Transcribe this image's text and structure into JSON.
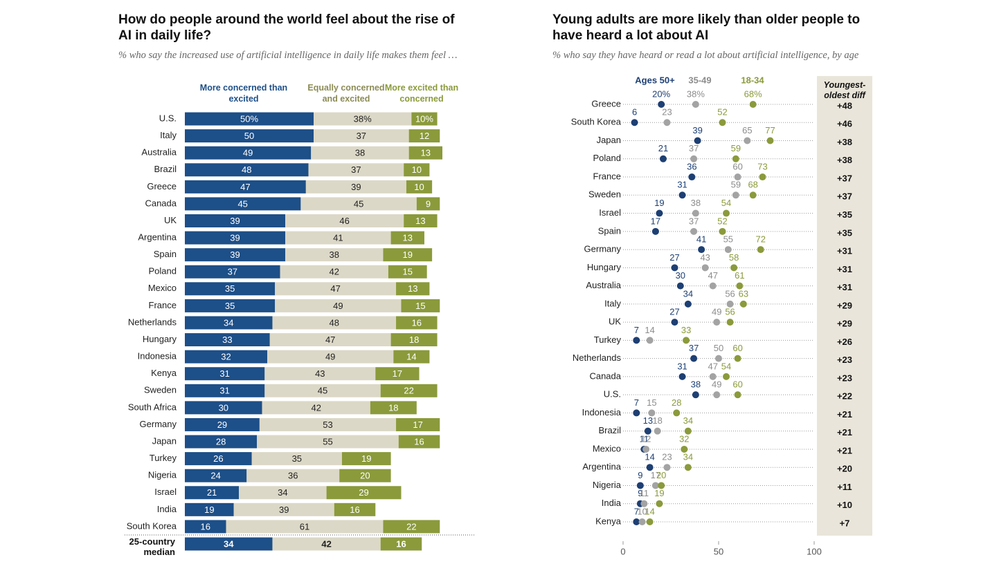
{
  "chart_data": [
    {
      "type": "bar",
      "orientation": "horizontal",
      "stacked": true,
      "title": "How do people around the world feel about the rise of AI in daily life?",
      "subtitle": "% who say the increased use of artificial intelligence in daily life makes them feel …",
      "categories": [
        "U.S.",
        "Italy",
        "Australia",
        "Brazil",
        "Greece",
        "Canada",
        "UK",
        "Argentina",
        "Spain",
        "Poland",
        "Mexico",
        "France",
        "Netherlands",
        "Hungary",
        "Indonesia",
        "Kenya",
        "Sweden",
        "South Africa",
        "Germany",
        "Japan",
        "Turkey",
        "Nigeria",
        "Israel",
        "India",
        "South Korea"
      ],
      "series": [
        {
          "name": "More concerned than excited",
          "color": "#1d4f88",
          "values": [
            50,
            50,
            49,
            48,
            47,
            45,
            39,
            39,
            39,
            37,
            35,
            35,
            34,
            33,
            32,
            31,
            31,
            30,
            29,
            28,
            26,
            24,
            21,
            19,
            16
          ],
          "value_labels": [
            "50%",
            "50",
            "49",
            "48",
            "47",
            "45",
            "39",
            "39",
            "39",
            "37",
            "35",
            "35",
            "34",
            "33",
            "32",
            "31",
            "31",
            "30",
            "29",
            "28",
            "26",
            "24",
            "21",
            "19",
            "16"
          ]
        },
        {
          "name": "Equally concerned and excited",
          "color": "#dcd8c7",
          "values": [
            38,
            37,
            38,
            37,
            39,
            45,
            46,
            41,
            38,
            42,
            47,
            49,
            48,
            47,
            49,
            43,
            45,
            42,
            53,
            55,
            35,
            36,
            34,
            39,
            61
          ],
          "value_labels": [
            "38%",
            "37",
            "38",
            "37",
            "39",
            "45",
            "46",
            "41",
            "38",
            "42",
            "47",
            "49",
            "48",
            "47",
            "49",
            "43",
            "45",
            "42",
            "53",
            "55",
            "35",
            "36",
            "34",
            "39",
            "61"
          ]
        },
        {
          "name": "More excited than concerned",
          "color": "#8b9a3b",
          "values": [
            10,
            12,
            13,
            10,
            10,
            9,
            13,
            13,
            19,
            15,
            13,
            15,
            16,
            18,
            14,
            17,
            22,
            18,
            17,
            16,
            19,
            20,
            29,
            16,
            22
          ],
          "value_labels": [
            "10%",
            "12",
            "13",
            "10",
            "10",
            "9",
            "13",
            "13",
            "19",
            "15",
            "13",
            "15",
            "16",
            "18",
            "14",
            "17",
            "22",
            "18",
            "17",
            "16",
            "19",
            "20",
            "29",
            "16",
            "22"
          ]
        }
      ],
      "summary": {
        "label": "25-country median",
        "values": [
          34,
          42,
          16
        ]
      }
    },
    {
      "type": "dot",
      "title": "Young adults are more likely than older people to have heard a lot about AI",
      "subtitle": "% who say they have heard or read a lot about artificial intelligence, by age",
      "categories": [
        "Greece",
        "South Korea",
        "Japan",
        "Poland",
        "France",
        "Sweden",
        "Israel",
        "Spain",
        "Germany",
        "Hungary",
        "Australia",
        "Italy",
        "UK",
        "Turkey",
        "Netherlands",
        "Canada",
        "U.S.",
        "Indonesia",
        "Brazil",
        "Mexico",
        "Argentina",
        "Nigeria",
        "India",
        "Kenya"
      ],
      "series": [
        {
          "name": "Ages 50+",
          "color": "#1d3f73",
          "values": [
            20,
            6,
            39,
            21,
            36,
            31,
            19,
            17,
            41,
            27,
            30,
            34,
            27,
            7,
            37,
            31,
            38,
            7,
            13,
            11,
            14,
            9,
            9,
            7
          ],
          "value_labels": [
            "20%",
            "6",
            "39",
            "21",
            "36",
            "31",
            "19",
            "17",
            "41",
            "27",
            "30",
            "34",
            "27",
            "7",
            "37",
            "31",
            "38",
            "7",
            "13",
            "11",
            "14",
            "9",
            "9",
            "7"
          ]
        },
        {
          "name": "35-49",
          "color": "#a3a3a3",
          "values": [
            38,
            23,
            65,
            37,
            60,
            59,
            38,
            37,
            55,
            43,
            47,
            56,
            49,
            14,
            50,
            47,
            49,
            15,
            18,
            12,
            23,
            17,
            11,
            10
          ],
          "value_labels": [
            "38%",
            "23",
            "65",
            "37",
            "60",
            "59",
            "38",
            "37",
            "55",
            "43",
            "47",
            "56",
            "49",
            "14",
            "50",
            "47",
            "49",
            "15",
            "18",
            "12",
            "23",
            "17",
            "11",
            "10"
          ]
        },
        {
          "name": "18-34",
          "color": "#8b9a3b",
          "values": [
            68,
            52,
            77,
            59,
            73,
            68,
            54,
            52,
            72,
            58,
            61,
            63,
            56,
            33,
            60,
            54,
            60,
            28,
            34,
            32,
            34,
            20,
            19,
            14
          ],
          "value_labels": [
            "68%",
            "52",
            "77",
            "59",
            "73",
            "68",
            "54",
            "52",
            "72",
            "58",
            "61",
            "63",
            "56",
            "33",
            "60",
            "54",
            "60",
            "28",
            "34",
            "32",
            "34",
            "20",
            "19",
            "14"
          ]
        }
      ],
      "diff": {
        "header": "Youngest-oldest diff",
        "values": [
          48,
          46,
          38,
          38,
          37,
          37,
          35,
          35,
          31,
          31,
          31,
          29,
          29,
          26,
          23,
          23,
          22,
          21,
          21,
          21,
          20,
          11,
          10,
          7
        ],
        "value_labels": [
          "+48",
          "+46",
          "+38",
          "+38",
          "+37",
          "+37",
          "+35",
          "+35",
          "+31",
          "+31",
          "+31",
          "+29",
          "+29",
          "+26",
          "+23",
          "+23",
          "+22",
          "+21",
          "+21",
          "+21",
          "+20",
          "+11",
          "+10",
          "+7"
        ]
      },
      "xlim": [
        0,
        100
      ],
      "xticks": [
        0,
        50,
        100
      ]
    }
  ]
}
